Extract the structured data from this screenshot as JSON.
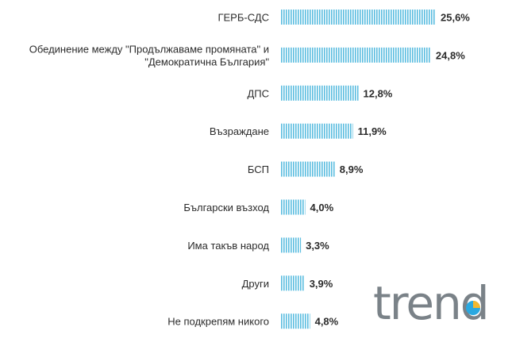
{
  "chart_data": {
    "type": "bar",
    "orientation": "horizontal",
    "categories": [
      [
        "ГЕРБ-СДС"
      ],
      [
        "Обединение между \"Продължаваме промяната\" и",
        "\"Демократична България\""
      ],
      [
        "ДПС"
      ],
      [
        "Възраждане"
      ],
      [
        "БСП"
      ],
      [
        "Български възход"
      ],
      [
        "Има такъв народ"
      ],
      [
        "Други"
      ],
      [
        "Не подкрепям никого"
      ]
    ],
    "values": [
      25.6,
      24.8,
      12.8,
      11.9,
      8.9,
      4.0,
      3.3,
      3.9,
      4.8
    ],
    "value_labels": [
      "25,6%",
      "24,8%",
      "12,8%",
      "11,9%",
      "8,9%",
      "4,0%",
      "3,3%",
      "3,9%",
      "4,8%"
    ],
    "title": "",
    "xlabel": "",
    "ylabel": "",
    "xlim": [
      0,
      26
    ],
    "grid": false,
    "legend": "none",
    "bar_color": "#5bbde0"
  },
  "logo": {
    "text": "trend",
    "text_color": "#7a8288",
    "accent_colors": [
      "#f2b82f",
      "#2aa8e0"
    ]
  }
}
